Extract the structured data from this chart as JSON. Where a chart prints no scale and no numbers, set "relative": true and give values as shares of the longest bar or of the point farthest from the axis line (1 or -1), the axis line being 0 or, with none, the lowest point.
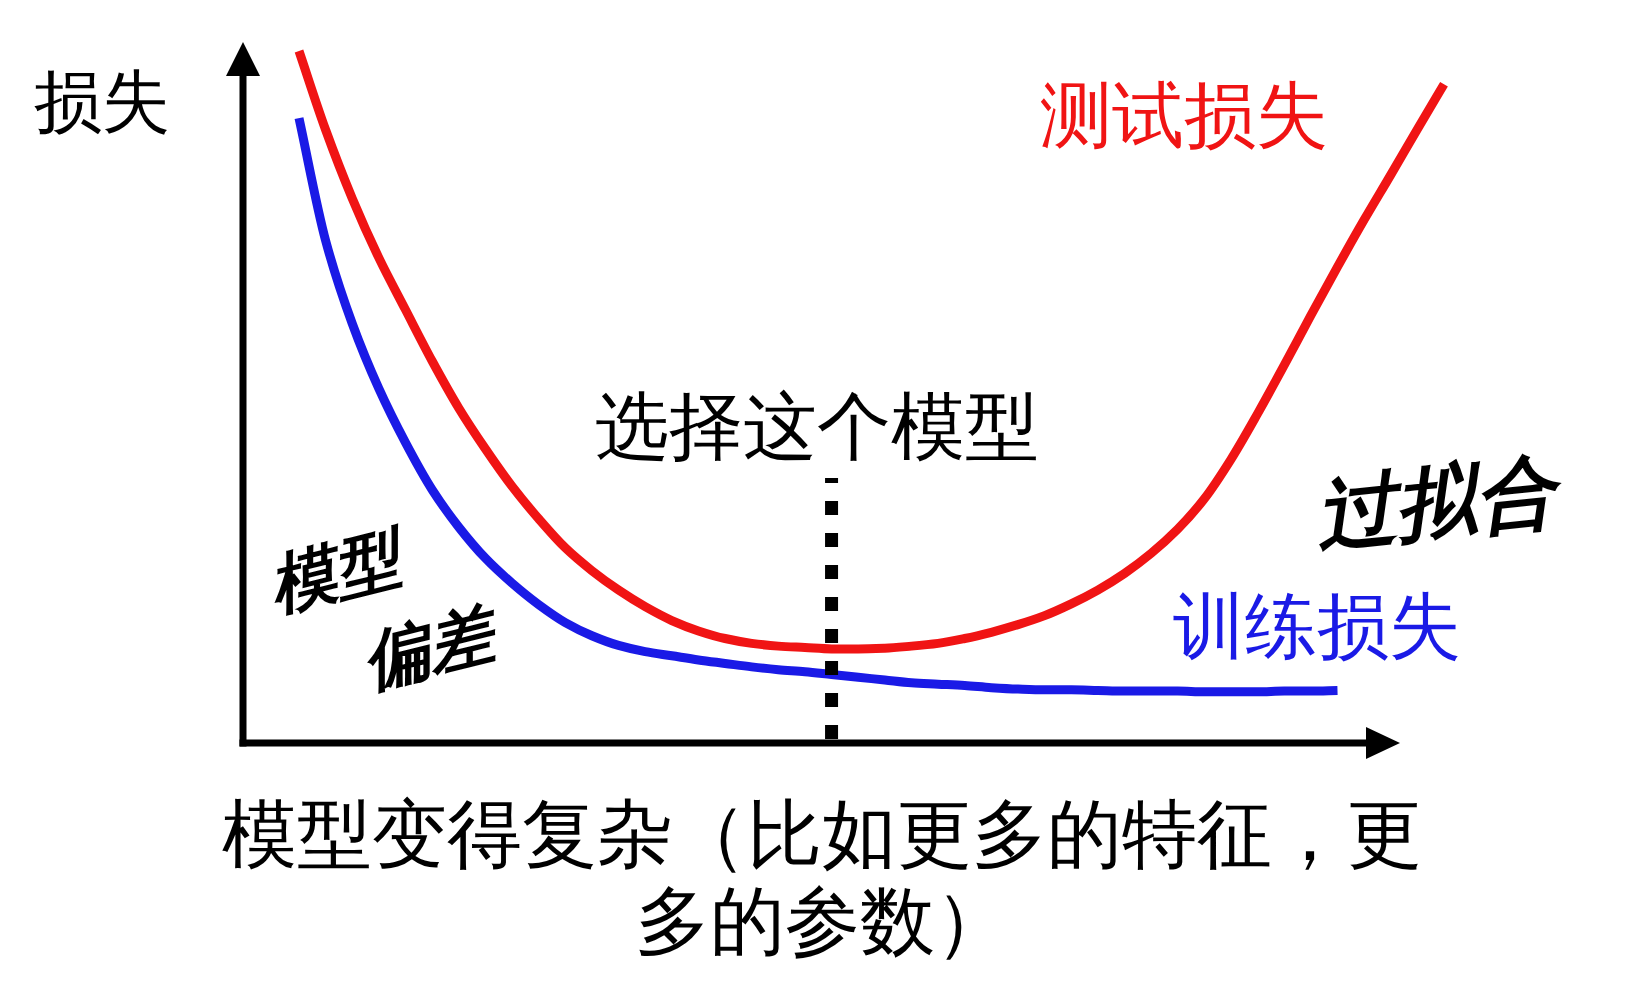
{
  "chart_data": {
    "type": "line",
    "relative": true,
    "line_style": "solid",
    "ylabel": "损失",
    "xlabel": "模型变得复杂（比如更多的特征，更多的参数）",
    "categories": [
      null,
      null,
      null,
      null,
      null,
      null,
      null,
      null,
      null,
      null,
      null,
      null,
      null,
      null,
      null,
      null,
      null,
      null,
      null,
      null,
      null,
      null,
      null,
      null,
      null,
      null,
      null,
      null,
      null,
      null,
      null,
      null,
      null,
      null,
      null,
      null,
      null,
      null,
      null,
      null,
      null,
      null,
      null,
      null
    ],
    "series": [
      {
        "name": "测试损失",
        "color": "#f01414",
        "values": [
          1,
          0.886,
          0.787,
          0.701,
          0.626,
          0.552,
          0.484,
          0.425,
          0.371,
          0.324,
          0.282,
          0.249,
          0.221,
          0.197,
          0.177,
          0.162,
          0.151,
          0.144,
          0.14,
          0.138,
          0.136,
          0.136,
          0.137,
          0.14,
          0.144,
          0.151,
          0.16,
          0.171,
          0.184,
          0.201,
          0.221,
          0.245,
          0.274,
          0.309,
          0.353,
          0.41,
          0.476,
          0.546,
          0.618,
          0.688,
          0.756,
          0.821,
          0.887,
          0.952
        ]
      },
      {
        "name": "训练损失",
        "color": "#1a1ae6",
        "values": [
          0.903,
          0.726,
          0.606,
          0.512,
          0.434,
          0.366,
          0.312,
          0.267,
          0.231,
          0.2,
          0.174,
          0.155,
          0.141,
          0.132,
          0.126,
          0.12,
          0.115,
          0.11,
          0.106,
          0.103,
          0.099,
          0.095,
          0.091,
          0.087,
          0.085,
          0.083,
          0.08,
          0.078,
          0.077,
          0.077,
          0.076,
          0.075,
          0.075,
          0.075,
          0.074,
          0.074,
          0.074,
          0.075,
          0.075,
          0.076,
          null,
          null,
          null,
          null
        ]
      }
    ],
    "annotations": [
      "选择这个模型",
      "模型偏差",
      "过拟合"
    ]
  }
}
